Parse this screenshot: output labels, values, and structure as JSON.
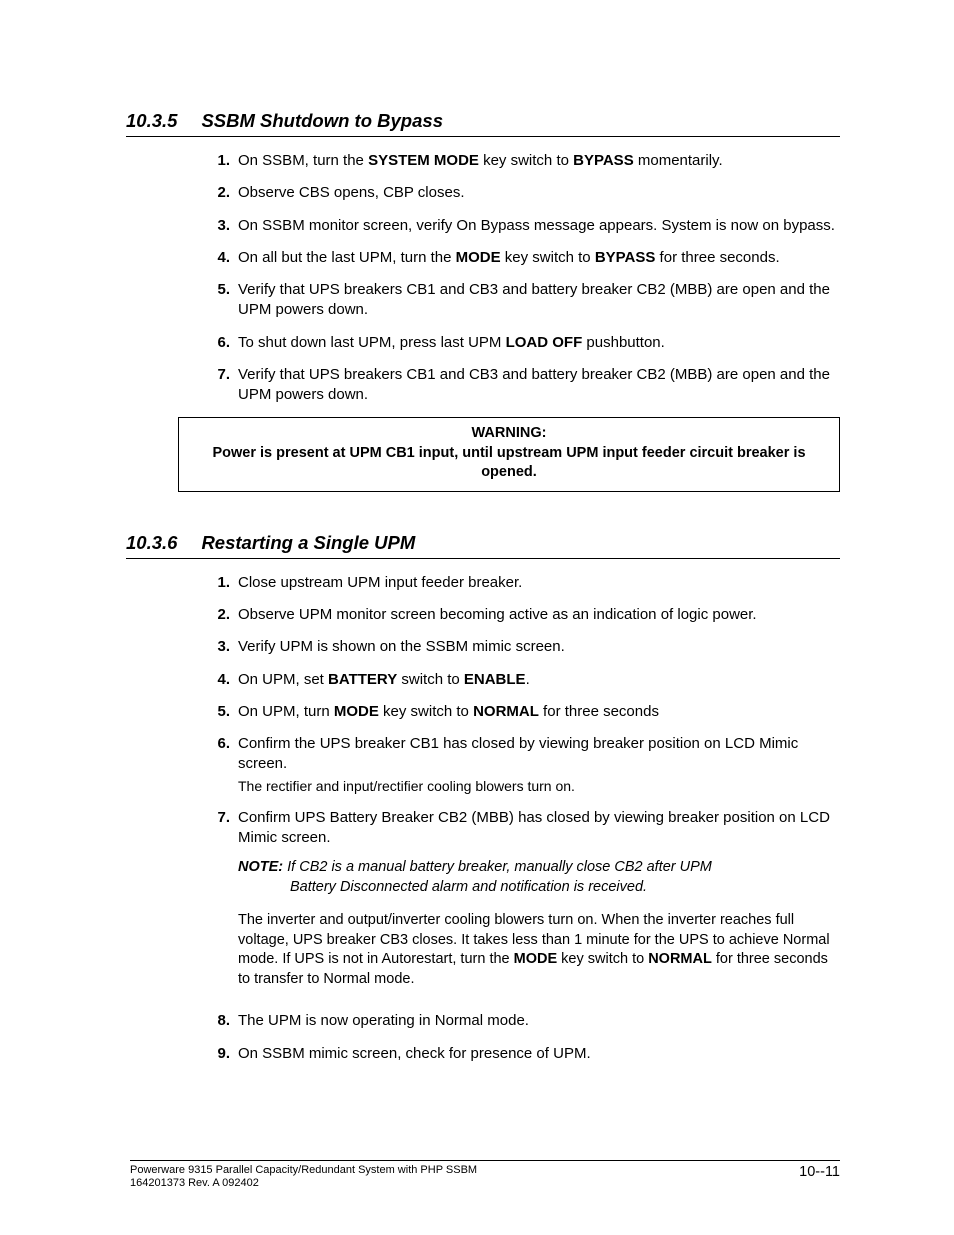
{
  "section1": {
    "number": "10.3.5",
    "title": "SSBM Shutdown to Bypass",
    "items": [
      {
        "n": "1.",
        "segs": [
          {
            "t": "On SSBM, turn the "
          },
          {
            "t": "SYSTEM MODE",
            "b": true
          },
          {
            "t": " key switch to "
          },
          {
            "t": "BYPASS",
            "b": true
          },
          {
            "t": " momentarily."
          }
        ]
      },
      {
        "n": "2.",
        "segs": [
          {
            "t": "Observe CBS opens, CBP closes."
          }
        ]
      },
      {
        "n": "3.",
        "segs": [
          {
            "t": "On SSBM monitor screen, verify On Bypass message appears.  System is now on bypass."
          }
        ]
      },
      {
        "n": "4.",
        "segs": [
          {
            "t": "On all but the last UPM, turn the "
          },
          {
            "t": "MODE",
            "b": true
          },
          {
            "t": " key switch to "
          },
          {
            "t": "BYPASS",
            "b": true
          },
          {
            "t": " for three seconds."
          }
        ]
      },
      {
        "n": "5.",
        "segs": [
          {
            "t": "Verify that UPS breakers CB1 and CB3 and battery breaker CB2 (MBB) are open and the UPM powers down."
          }
        ]
      },
      {
        "n": "6.",
        "segs": [
          {
            "t": "To shut down last UPM, press last UPM "
          },
          {
            "t": "LOAD OFF",
            "b": true
          },
          {
            "t": " pushbutton."
          }
        ]
      },
      {
        "n": "7.",
        "segs": [
          {
            "t": "Verify that UPS breakers CB1 and CB3 and battery breaker CB2 (MBB) are open and the UPM powers down."
          }
        ]
      }
    ]
  },
  "warning": {
    "title": "WARNING:",
    "body_pre": "Power is present at UPM CB1 input, until ",
    "body_bold": "upstream UPM input feeder circuit breaker is opened."
  },
  "section2": {
    "number": "10.3.6",
    "title": "Restarting a Single UPM",
    "items": [
      {
        "n": "1.",
        "segs": [
          {
            "t": "Close upstream UPM input feeder breaker."
          }
        ]
      },
      {
        "n": "2.",
        "segs": [
          {
            "t": "Observe UPM monitor screen becoming active as an indication of logic power."
          }
        ]
      },
      {
        "n": "3.",
        "segs": [
          {
            "t": "Verify UPM is shown on the SSBM mimic screen."
          }
        ]
      },
      {
        "n": "4.",
        "segs": [
          {
            "t": "On UPM, set "
          },
          {
            "t": "BATTERY",
            "b": true
          },
          {
            "t": " switch to "
          },
          {
            "t": "ENABLE",
            "b": true
          },
          {
            "t": "."
          }
        ]
      },
      {
        "n": "5.",
        "segs": [
          {
            "t": "On UPM, turn "
          },
          {
            "t": "MODE",
            "b": true
          },
          {
            "t": " key switch to "
          },
          {
            "t": "NORMAL",
            "b": true
          },
          {
            "t": " for three seconds"
          }
        ]
      },
      {
        "n": "6.",
        "segs": [
          {
            "t": "Confirm the UPS breaker CB1 has closed by viewing breaker position on LCD Mimic screen."
          }
        ],
        "sub": "The rectifier and input/rectifier cooling blowers turn on."
      },
      {
        "n": "7.",
        "segs": [
          {
            "t": "Confirm UPS Battery Breaker CB2 (MBB) has closed by viewing breaker position on LCD Mimic screen."
          }
        ],
        "note": {
          "label": "NOTE:",
          "line1": " If CB2 is a manual battery breaker, manually close CB2 after UPM",
          "line2": "Battery Disconnected alarm and notification is received."
        },
        "para_segs": [
          {
            "t": "The inverter and output/inverter cooling blowers turn on. When the inverter reaches full voltage, UPS breaker CB3 closes. It takes less than 1 minute for the UPS to achieve Normal mode. If UPS is not in Autorestart, turn the "
          },
          {
            "t": "MODE",
            "b": true
          },
          {
            "t": " key switch to "
          },
          {
            "t": "NORMAL",
            "b": true
          },
          {
            "t": " for three seconds to transfer to Normal mode."
          }
        ]
      },
      {
        "n": "8.",
        "segs": [
          {
            "t": "The UPM is now operating in Normal mode."
          }
        ]
      },
      {
        "n": "9.",
        "segs": [
          {
            "t": "On SSBM mimic screen, check for presence of UPM."
          }
        ]
      }
    ]
  },
  "footer": {
    "line1": "Powerware 9315 Parallel Capacity/Redundant System with PHP SSBM",
    "line2": "164201373    Rev. A      092402",
    "page": "10--11"
  }
}
